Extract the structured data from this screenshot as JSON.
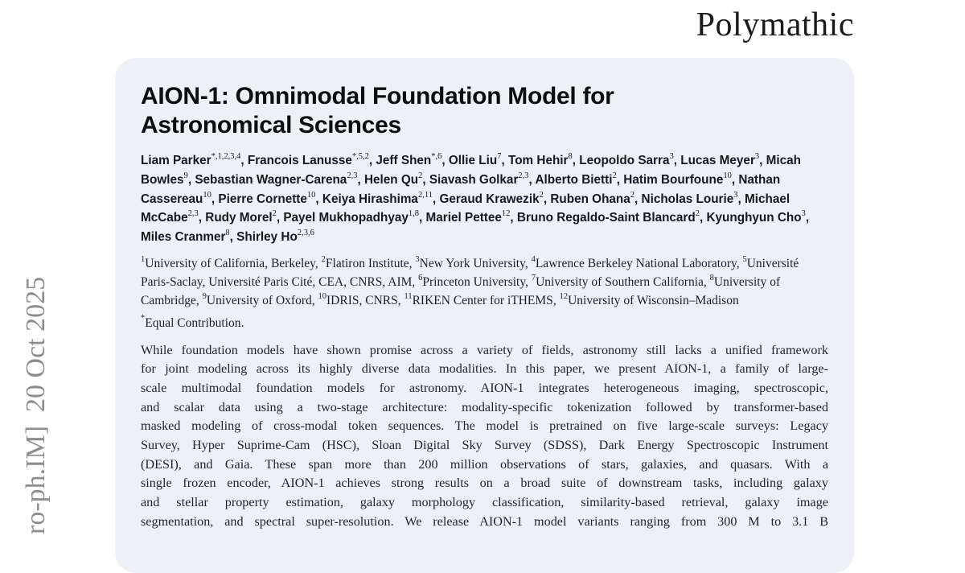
{
  "logo": {
    "text": "Polymathic"
  },
  "watermark": {
    "text": "ro-ph.IM]  20 Oct 2025"
  },
  "colors": {
    "card_background": "#edf1f5",
    "text": "#16181c",
    "watermark_gray": "#8d8d8d"
  },
  "paper": {
    "title_line1": "AION-1: Omnimodal Foundation Model for",
    "title_line2": "Astronomical Sciences",
    "authors": [
      {
        "name": "Liam Parker",
        "sup": "*,1,2,3,4"
      },
      {
        "name": "Francois Lanusse",
        "sup": "*,5,2"
      },
      {
        "name": "Jeff Shen",
        "sup": "*,6"
      },
      {
        "name": "Ollie Liu",
        "sup": "7"
      },
      {
        "name": "Tom Hehir",
        "sup": "8"
      },
      {
        "name": "Leopoldo Sarra",
        "sup": "3"
      },
      {
        "name": "Lucas Meyer",
        "sup": "3"
      },
      {
        "name": "Micah Bowles",
        "sup": "9"
      },
      {
        "name": "Sebastian Wagner-Carena",
        "sup": "2,3"
      },
      {
        "name": "Helen Qu",
        "sup": "2"
      },
      {
        "name": "Siavash Golkar",
        "sup": "2,3"
      },
      {
        "name": "Alberto Bietti",
        "sup": "2"
      },
      {
        "name": "Hatim Bourfoune",
        "sup": "10"
      },
      {
        "name": "Nathan Cassereau",
        "sup": "10"
      },
      {
        "name": "Pierre Cornette",
        "sup": "10"
      },
      {
        "name": "Keiya Hirashima",
        "sup": "2,11"
      },
      {
        "name": "Geraud Krawezik",
        "sup": "2"
      },
      {
        "name": "Ruben Ohana",
        "sup": "2"
      },
      {
        "name": "Nicholas Lourie",
        "sup": "3"
      },
      {
        "name": "Michael McCabe",
        "sup": "2,3"
      },
      {
        "name": "Rudy Morel",
        "sup": "2"
      },
      {
        "name": "Payel Mukhopadhyay",
        "sup": "1,8"
      },
      {
        "name": "Mariel Pettee",
        "sup": "12"
      },
      {
        "name": "Bruno Regaldo-Saint Blancard",
        "sup": "2"
      },
      {
        "name": "Kyunghyun Cho",
        "sup": "3"
      },
      {
        "name": "Miles Cranmer",
        "sup": "8"
      },
      {
        "name": "Shirley Ho",
        "sup": "2,3,6"
      }
    ],
    "affiliations": [
      {
        "sup": "1",
        "text": "University of California, Berkeley"
      },
      {
        "sup": "2",
        "text": "Flatiron Institute"
      },
      {
        "sup": "3",
        "text": "New York University"
      },
      {
        "sup": "4",
        "text": "Lawrence Berkeley National Laboratory"
      },
      {
        "sup": "5",
        "text": "Université Paris-Saclay, Université Paris Cité, CEA, CNRS, AIM"
      },
      {
        "sup": "6",
        "text": "Princeton University"
      },
      {
        "sup": "7",
        "text": "University of Southern California"
      },
      {
        "sup": "8",
        "text": "University of Cambridge"
      },
      {
        "sup": "9",
        "text": "University of Oxford"
      },
      {
        "sup": "10",
        "text": "IDRIS, CNRS"
      },
      {
        "sup": "11",
        "text": "RIKEN Center for iTHEMS"
      },
      {
        "sup": "12",
        "text": "University of Wisconsin–Madison"
      }
    ],
    "equal_contribution_marker": "*",
    "equal_contribution": "Equal Contribution.",
    "abstract_lines": [
      "While foundation models have shown promise across a variety of fields, astronomy still lacks a unified framework",
      "for joint modeling across its highly diverse data modalities.  In this paper, we present AION-1, a family of large-",
      "scale multimodal foundation models for astronomy.  AION-1 integrates heterogeneous imaging, spectroscopic,",
      "and scalar data using a two-stage architecture:  modality-specific tokenization followed by transformer-based",
      "masked modeling of cross-modal token sequences.  The model is pretrained on five large-scale surveys:  Legacy",
      "Survey, Hyper Suprime-Cam (HSC), Sloan Digital Sky Survey (SDSS), Dark Energy Spectroscopic Instrument",
      "(DESI), and Gaia.  These span more than 200 million observations of stars, galaxies, and quasars.  With a",
      "single frozen encoder, AION-1 achieves strong results on a broad suite of downstream tasks, including galaxy",
      "and stellar property estimation, galaxy morphology classification, similarity-based retrieval, galaxy image",
      "segmentation, and spectral super-resolution.  We release AION-1 model variants ranging from 300 M to 3.1 B"
    ]
  }
}
